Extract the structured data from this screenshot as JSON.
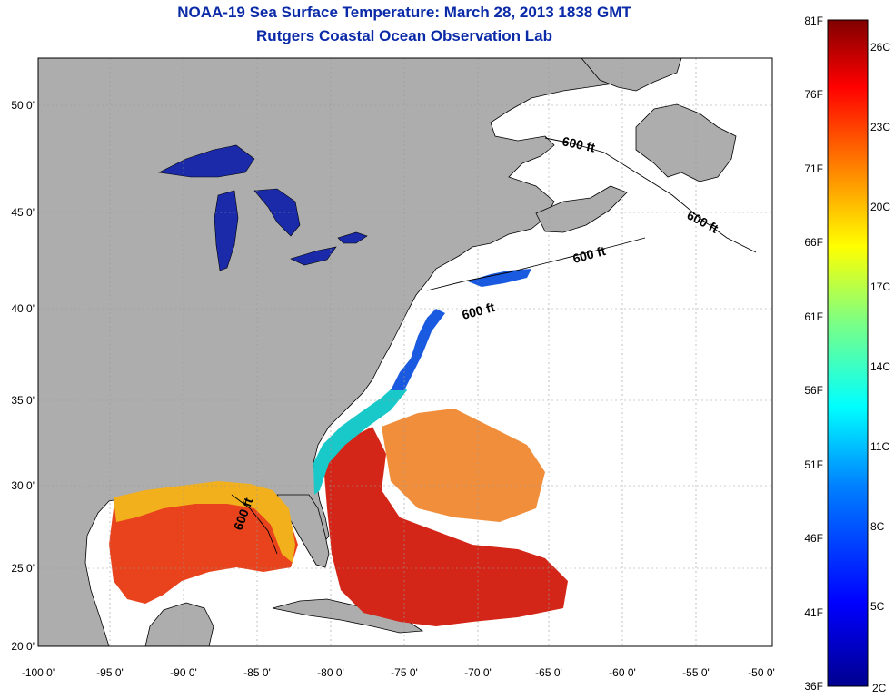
{
  "header": {
    "title": "NOAA-19 Sea Surface Temperature:  March 28, 2013 1838 GMT",
    "subtitle": "Rutgers Coastal Ocean Observation Lab"
  },
  "map": {
    "lon_range": [
      -100,
      -50
    ],
    "lat_range": [
      20,
      52.5
    ],
    "lon_ticks": [
      "-100 0'",
      "-95 0'",
      "-90 0'",
      "-85 0'",
      "-80 0'",
      "-75 0'",
      "-70 0'",
      "-65 0'",
      "-60 0'",
      "-55 0'",
      "-50 0'"
    ],
    "lat_ticks": [
      "50 0'",
      "45 0'",
      "40 0'",
      "35 0'",
      "30 0'",
      "25 0'",
      "20 0'"
    ],
    "contour_labels": [
      "600 ft",
      "600 ft",
      "600 ft",
      "600 ft",
      "600 ft"
    ],
    "colors": {
      "land": "#adadad",
      "ocean_nodata": "#ffffff",
      "grid": "#9a9a9a"
    }
  },
  "colorbar": {
    "f_labels": [
      "81F",
      "76F",
      "71F",
      "66F",
      "61F",
      "56F",
      "51F",
      "46F",
      "41F",
      "36F"
    ],
    "c_labels": [
      "26C",
      "23C",
      "20C",
      "17C",
      "14C",
      "11C",
      "8C",
      "5C",
      "2C"
    ],
    "colors": [
      "#00008f",
      "#0000ff",
      "#0080ff",
      "#00ffff",
      "#80ff80",
      "#ffff00",
      "#ff8000",
      "#ff0000",
      "#800000"
    ]
  }
}
